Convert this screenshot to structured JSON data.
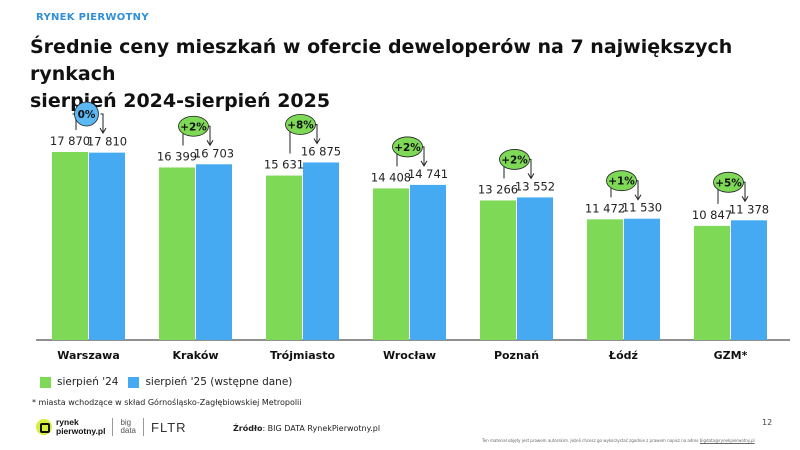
{
  "header": {
    "section": "RYNEK PIERWOTNY",
    "title_line1": "Średnie ceny mieszkań w ofercie deweloperów na 7 największych rynkach",
    "title_line2": "sierpień 2024-sierpień 2025"
  },
  "colors": {
    "series1": "#7ed957",
    "series2": "#45aaf2",
    "badge": "#7ed957",
    "badge_zero": "#5bb8f5"
  },
  "chart_data": {
    "type": "bar",
    "categories": [
      "Warszawa",
      "Kraków",
      "Trójmiasto",
      "Wrocław",
      "Poznań",
      "Łódź",
      "GZM*"
    ],
    "series": [
      {
        "name": "sierpień '24",
        "values": [
          17870,
          16399,
          15631,
          14408,
          13266,
          11472,
          10847
        ],
        "labels": [
          "17 870",
          "16 399",
          "15 631",
          "14 408",
          "13 266",
          "11 472",
          "10 847"
        ]
      },
      {
        "name": "sierpień '25 (wstępne dane)",
        "values": [
          17810,
          16703,
          16875,
          14741,
          13552,
          11530,
          11378
        ],
        "labels": [
          "17 810",
          "16 703",
          "16 875",
          "14 741",
          "13 552",
          "11 530",
          "11 378"
        ]
      }
    ],
    "changes": [
      "0%",
      "+2%",
      "+8%",
      "+2%",
      "+2%",
      "+1%",
      "+5%"
    ],
    "legend": "bottom-left",
    "grid": false
  },
  "footnote": "* miasta wchodzące w skład Górnośląsko-Zagłębiowskiej Metropolii",
  "source": {
    "label": "Źródło",
    "text": ": BIG DATA RynekPierwotny.pl"
  },
  "page_number": "12",
  "disclaimer": {
    "text": "Ten materiał objęty jest prawem autorskim. Jeżeli chcesz go wykorzystać zgodnie z prawem napisz na adres ",
    "email": "bigdata@rynekpierwotny.pl"
  },
  "logos": {
    "brand_line1": "rynek",
    "brand_line2": "pierwotny.pl",
    "big_line1": "big",
    "big_line2": "data",
    "fltr": "FLTR"
  }
}
